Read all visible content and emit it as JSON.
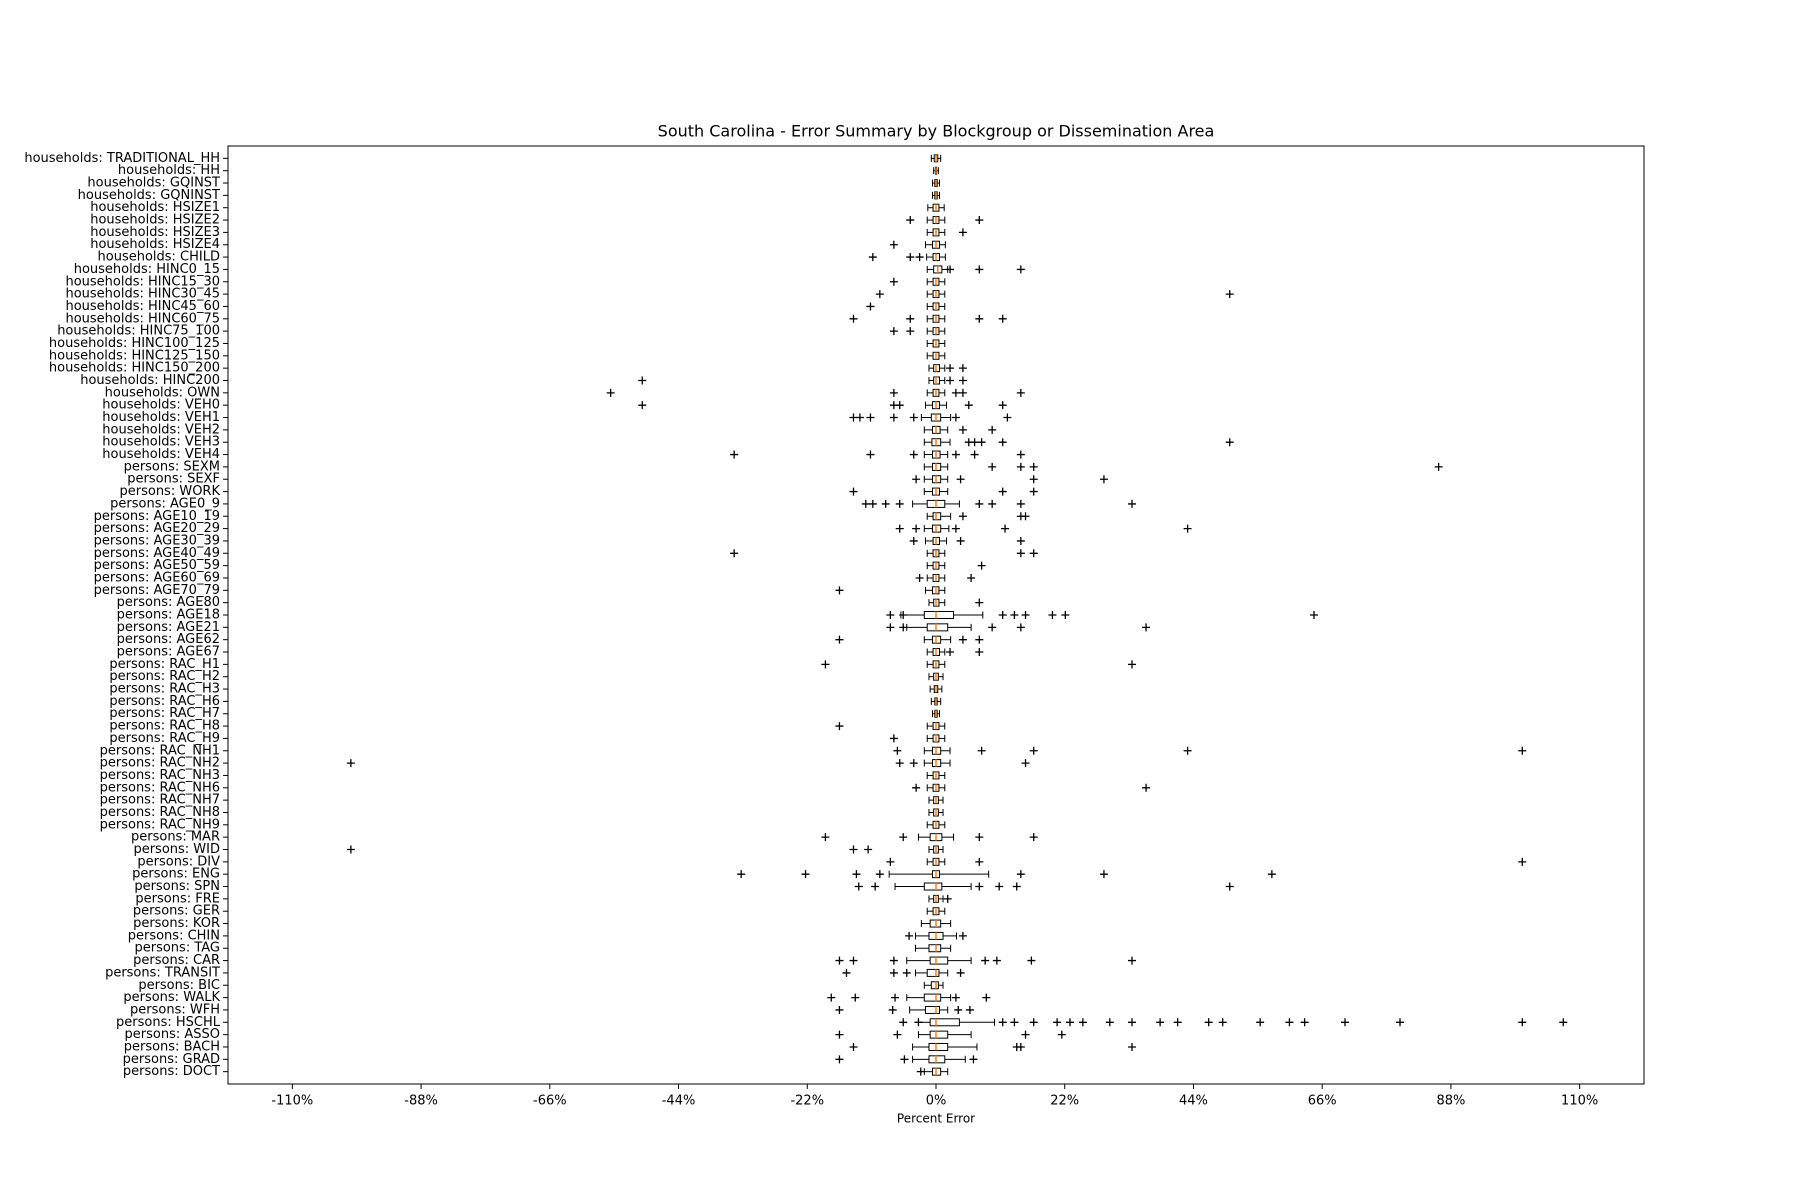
{
  "chart_data": {
    "type": "boxplot",
    "orientation": "horizontal",
    "title": "South Carolina - Error Summary by Blockgroup or Dissemination Area",
    "xlabel": "Percent Error",
    "xlim": [
      -121,
      121
    ],
    "xticks": [
      {
        "value": -110,
        "label": "-110%"
      },
      {
        "value": -88,
        "label": "-88%"
      },
      {
        "value": -66,
        "label": "-66%"
      },
      {
        "value": -44,
        "label": "-44%"
      },
      {
        "value": -22,
        "label": "-22%"
      },
      {
        "value": 0,
        "label": "0%"
      },
      {
        "value": 22,
        "label": "22%"
      },
      {
        "value": 44,
        "label": "44%"
      },
      {
        "value": 66,
        "label": "66%"
      },
      {
        "value": 88,
        "label": "88%"
      },
      {
        "value": 110,
        "label": "110%"
      }
    ],
    "categories": [
      "households: TRADITIONAL_HH",
      "households: HH",
      "households: GQINST",
      "households: GQNINST",
      "households: HSIZE1",
      "households: HSIZE2",
      "households: HSIZE3",
      "households: HSIZE4",
      "households: CHILD",
      "households: HINC0_15",
      "households: HINC15_30",
      "households: HINC30_45",
      "households: HINC45_60",
      "households: HINC60_75",
      "households: HINC75_100",
      "households: HINC100_125",
      "households: HINC125_150",
      "households: HINC150_200",
      "households: HINC200",
      "households: OWN",
      "households: VEH0",
      "households: VEH1",
      "households: VEH2",
      "households: VEH3",
      "households: VEH4",
      "persons: SEXM",
      "persons: SEXF",
      "persons: WORK",
      "persons: AGE0_9",
      "persons: AGE10_19",
      "persons: AGE20_29",
      "persons: AGE30_39",
      "persons: AGE40_49",
      "persons: AGE50_59",
      "persons: AGE60_69",
      "persons: AGE70_79",
      "persons: AGE80",
      "persons: AGE18",
      "persons: AGE21",
      "persons: AGE62",
      "persons: AGE67",
      "persons: RAC_H1",
      "persons: RAC_H2",
      "persons: RAC_H3",
      "persons: RAC_H6",
      "persons: RAC_H7",
      "persons: RAC_H8",
      "persons: RAC_H9",
      "persons: RAC_NH1",
      "persons: RAC_NH2",
      "persons: RAC_NH3",
      "persons: RAC_NH6",
      "persons: RAC_NH7",
      "persons: RAC_NH8",
      "persons: RAC_NH9",
      "persons: MAR",
      "persons: WID",
      "persons: DIV",
      "persons: ENG",
      "persons: SPN",
      "persons: FRE",
      "persons: GER",
      "persons: KOR",
      "persons: CHIN",
      "persons: TAG",
      "persons: CAR",
      "persons: TRANSIT",
      "persons: BIC",
      "persons: WALK",
      "persons: WFH",
      "persons: HSCHL",
      "persons: ASSO",
      "persons: BACH",
      "persons: GRAD",
      "persons: DOCT"
    ],
    "box_color": "#000000",
    "median_color": "#ff7f0e",
    "boxes": [
      {
        "whislo": -0.8,
        "q1": -0.3,
        "med": 0,
        "q3": 0.3,
        "whishi": 0.8,
        "fliers": []
      },
      {
        "whislo": -0.4,
        "q1": -0.1,
        "med": 0,
        "q3": 0.1,
        "whishi": 0.4,
        "fliers": []
      },
      {
        "whislo": -0.6,
        "q1": -0.2,
        "med": 0,
        "q3": 0.2,
        "whishi": 0.6,
        "fliers": []
      },
      {
        "whislo": -0.6,
        "q1": -0.2,
        "med": 0,
        "q3": 0.2,
        "whishi": 0.6,
        "fliers": []
      },
      {
        "whislo": -1.4,
        "q1": -0.5,
        "med": 0,
        "q3": 0.5,
        "whishi": 1.4,
        "fliers": []
      },
      {
        "whislo": -1.5,
        "q1": -0.5,
        "med": 0,
        "q3": 0.5,
        "whishi": 1.5,
        "fliers": [
          -4.4,
          7.4
        ]
      },
      {
        "whislo": -1.5,
        "q1": -0.5,
        "med": 0,
        "q3": 0.5,
        "whishi": 1.5,
        "fliers": [
          4.6
        ]
      },
      {
        "whislo": -1.8,
        "q1": -0.6,
        "med": 0,
        "q3": 0.6,
        "whishi": 1.6,
        "fliers": [
          -7.2
        ]
      },
      {
        "whislo": -1.6,
        "q1": -0.5,
        "med": 0,
        "q3": 0.6,
        "whishi": 1.6,
        "fliers": [
          -10.8,
          -4.4,
          -2.8
        ]
      },
      {
        "whislo": -1.5,
        "q1": -0.4,
        "med": 0.3,
        "q3": 1,
        "whishi": 2,
        "fliers": [
          2.4,
          7.4,
          14.5
        ]
      },
      {
        "whislo": -1.5,
        "q1": -0.5,
        "med": 0,
        "q3": 0.5,
        "whishi": 1.5,
        "fliers": [
          -7.2
        ]
      },
      {
        "whislo": -1.5,
        "q1": -0.5,
        "med": 0,
        "q3": 0.5,
        "whishi": 1.5,
        "fliers": [
          -9.6,
          50.2
        ]
      },
      {
        "whislo": -1.5,
        "q1": -0.5,
        "med": 0,
        "q3": 0.5,
        "whishi": 1.5,
        "fliers": [
          -11.2
        ]
      },
      {
        "whislo": -1.5,
        "q1": -0.5,
        "med": 0,
        "q3": 0.5,
        "whishi": 1.5,
        "fliers": [
          -14.1,
          -4.4,
          7.4,
          11.4
        ]
      },
      {
        "whislo": -1.5,
        "q1": -0.5,
        "med": 0,
        "q3": 0.5,
        "whishi": 1.5,
        "fliers": [
          -7.2,
          -4.4
        ]
      },
      {
        "whislo": -1.5,
        "q1": -0.5,
        "med": 0,
        "q3": 0.5,
        "whishi": 1.5,
        "fliers": []
      },
      {
        "whislo": -1.5,
        "q1": -0.5,
        "med": 0,
        "q3": 0.5,
        "whishi": 1.5,
        "fliers": []
      },
      {
        "whislo": -1.2,
        "q1": -0.4,
        "med": 0,
        "q3": 0.6,
        "whishi": 1.5,
        "fliers": [
          2.4,
          4.6
        ]
      },
      {
        "whislo": -1.2,
        "q1": -0.4,
        "med": 0,
        "q3": 0.6,
        "whishi": 1.5,
        "fliers": [
          -50.2,
          2.4,
          4.6
        ]
      },
      {
        "whislo": -1.5,
        "q1": -0.5,
        "med": 0,
        "q3": 0.5,
        "whishi": 1.5,
        "fliers": [
          -55.6,
          -7.2,
          3.4,
          4.6,
          14.5
        ]
      },
      {
        "whislo": -1.8,
        "q1": -0.6,
        "med": 0,
        "q3": 0.6,
        "whishi": 1.8,
        "fliers": [
          -50.2,
          -7.2,
          -6.2,
          5.6,
          11.4
        ]
      },
      {
        "whislo": -2.5,
        "q1": -0.8,
        "med": 0,
        "q3": 0.8,
        "whishi": 2.5,
        "fliers": [
          -14.1,
          -13,
          -11.2,
          -7.2,
          -3.8,
          3.4,
          12.2
        ]
      },
      {
        "whislo": -2,
        "q1": -0.6,
        "med": 0,
        "q3": 0.7,
        "whishi": 2,
        "fliers": [
          4.6,
          9.6
        ]
      },
      {
        "whislo": -2,
        "q1": -0.7,
        "med": 0,
        "q3": 0.8,
        "whishi": 2.4,
        "fliers": [
          5.6,
          6.6,
          7.8,
          11.4,
          50.2
        ]
      },
      {
        "whislo": -2,
        "q1": -0.6,
        "med": 0,
        "q3": 0.7,
        "whishi": 2,
        "fliers": [
          -34.5,
          -11.2,
          -3.8,
          3.4,
          6.6,
          14.5
        ]
      },
      {
        "whislo": -2,
        "q1": -0.6,
        "med": 0,
        "q3": 0.8,
        "whishi": 2,
        "fliers": [
          9.6,
          14.5,
          16.7,
          85.9
        ]
      },
      {
        "whislo": -2,
        "q1": -0.6,
        "med": 0,
        "q3": 0.8,
        "whishi": 2,
        "fliers": [
          -3.4,
          4.2,
          16.7,
          28.7
        ]
      },
      {
        "whislo": -2,
        "q1": -0.6,
        "med": 0,
        "q3": 0.6,
        "whishi": 2,
        "fliers": [
          -14.1,
          11.4,
          16.7
        ]
      },
      {
        "whislo": -4,
        "q1": -1.5,
        "med": 0,
        "q3": 1.5,
        "whishi": 4,
        "fliers": [
          -12,
          -10.8,
          -8.6,
          -6.2,
          7.4,
          9.6,
          14.5,
          33.5
        ]
      },
      {
        "whislo": -1.5,
        "q1": -0.5,
        "med": 0,
        "q3": 0.8,
        "whishi": 2.5,
        "fliers": [
          4.6,
          14.5,
          15.3
        ]
      },
      {
        "whislo": -2,
        "q1": -0.6,
        "med": 0,
        "q3": 0.8,
        "whishi": 2.2,
        "fliers": [
          -6.2,
          -3.4,
          3.4,
          11.8,
          43
        ]
      },
      {
        "whislo": -1.8,
        "q1": -0.5,
        "med": 0,
        "q3": 0.6,
        "whishi": 1.8,
        "fliers": [
          -3.8,
          4.2,
          14.5
        ]
      },
      {
        "whislo": -1.5,
        "q1": -0.5,
        "med": 0,
        "q3": 0.5,
        "whishi": 1.5,
        "fliers": [
          -34.5,
          14.5,
          16.7
        ]
      },
      {
        "whislo": -1.5,
        "q1": -0.5,
        "med": 0,
        "q3": 0.5,
        "whishi": 1.5,
        "fliers": [
          7.8
        ]
      },
      {
        "whislo": -1.5,
        "q1": -0.5,
        "med": 0,
        "q3": 0.5,
        "whishi": 1.5,
        "fliers": [
          -2.8,
          6
        ]
      },
      {
        "whislo": -1.8,
        "q1": -0.6,
        "med": 0,
        "q3": 0.5,
        "whishi": 1.5,
        "fliers": [
          -16.5
        ]
      },
      {
        "whislo": -1.2,
        "q1": -0.4,
        "med": 0,
        "q3": 0.5,
        "whishi": 1.5,
        "fliers": [
          7.4
        ]
      },
      {
        "whislo": -6,
        "q1": -2,
        "med": 0,
        "q3": 3,
        "whishi": 8,
        "fliers": [
          -7.8,
          -5.6,
          11.4,
          13.4,
          15.3,
          19.9,
          22.1,
          64.6
        ]
      },
      {
        "whislo": -5,
        "q1": -1.5,
        "med": 0,
        "q3": 2,
        "whishi": 6,
        "fliers": [
          -7.8,
          -5.6,
          9.6,
          14.5,
          35.9
        ]
      },
      {
        "whislo": -2,
        "q1": -0.6,
        "med": 0,
        "q3": 0.8,
        "whishi": 2.5,
        "fliers": [
          -16.5,
          4.6,
          7.4
        ]
      },
      {
        "whislo": -1.5,
        "q1": -0.5,
        "med": 0,
        "q3": 0.6,
        "whishi": 1.5,
        "fliers": [
          2.4,
          7.4
        ]
      },
      {
        "whislo": -1.5,
        "q1": -0.5,
        "med": 0,
        "q3": 0.5,
        "whishi": 1.5,
        "fliers": [
          -18.9,
          33.5
        ]
      },
      {
        "whislo": -1.2,
        "q1": -0.4,
        "med": 0,
        "q3": 0.4,
        "whishi": 1.2,
        "fliers": []
      },
      {
        "whislo": -1,
        "q1": -0.3,
        "med": 0,
        "q3": 0.3,
        "whishi": 1,
        "fliers": []
      },
      {
        "whislo": -0.8,
        "q1": -0.2,
        "med": 0,
        "q3": 0.2,
        "whishi": 0.8,
        "fliers": []
      },
      {
        "whislo": -0.6,
        "q1": -0.2,
        "med": 0,
        "q3": 0.2,
        "whishi": 0.6,
        "fliers": []
      },
      {
        "whislo": -1.5,
        "q1": -0.5,
        "med": 0,
        "q3": 0.5,
        "whishi": 1.5,
        "fliers": [
          -16.5
        ]
      },
      {
        "whislo": -1.5,
        "q1": -0.5,
        "med": 0,
        "q3": 0.5,
        "whishi": 1.5,
        "fliers": [
          -7.2
        ]
      },
      {
        "whislo": -2,
        "q1": -0.6,
        "med": 0,
        "q3": 0.8,
        "whishi": 2.4,
        "fliers": [
          -6.6,
          7.8,
          16.7,
          43,
          100.2
        ]
      },
      {
        "whislo": -2,
        "q1": -0.6,
        "med": 0,
        "q3": 0.8,
        "whishi": 2.4,
        "fliers": [
          -100,
          -6.2,
          -3.8,
          15.3
        ]
      },
      {
        "whislo": -1.5,
        "q1": -0.5,
        "med": 0,
        "q3": 0.5,
        "whishi": 1.5,
        "fliers": []
      },
      {
        "whislo": -1.5,
        "q1": -0.5,
        "med": 0,
        "q3": 0.5,
        "whishi": 1.5,
        "fliers": [
          -3.4,
          35.9
        ]
      },
      {
        "whislo": -1.2,
        "q1": -0.4,
        "med": 0,
        "q3": 0.4,
        "whishi": 1.2,
        "fliers": []
      },
      {
        "whislo": -1.2,
        "q1": -0.4,
        "med": 0,
        "q3": 0.4,
        "whishi": 1.2,
        "fliers": []
      },
      {
        "whislo": -1.5,
        "q1": -0.5,
        "med": 0,
        "q3": 0.5,
        "whishi": 1.5,
        "fliers": []
      },
      {
        "whislo": -3,
        "q1": -1,
        "med": 0,
        "q3": 1,
        "whishi": 3,
        "fliers": [
          -18.9,
          -5.6,
          7.4,
          16.7
        ]
      },
      {
        "whislo": -1.2,
        "q1": -0.4,
        "med": 0,
        "q3": 0.4,
        "whishi": 1.2,
        "fliers": [
          -100,
          -14.1,
          -11.6
        ]
      },
      {
        "whislo": -1.5,
        "q1": -0.5,
        "med": 0,
        "q3": 0.5,
        "whishi": 1.5,
        "fliers": [
          -7.8,
          7.4,
          100.2
        ]
      },
      {
        "whislo": -8,
        "q1": -0.6,
        "med": 0,
        "q3": 0.6,
        "whishi": 9,
        "fliers": [
          -33.3,
          -22.3,
          -13.6,
          -9.6,
          14.5,
          28.7,
          57.4
        ]
      },
      {
        "whislo": -7,
        "q1": -2,
        "med": 0,
        "q3": 1,
        "whishi": 6,
        "fliers": [
          -13.2,
          -10.4,
          7.4,
          10.8,
          13.8,
          50.2
        ]
      },
      {
        "whislo": -1.2,
        "q1": -0.4,
        "med": 0,
        "q3": 0.4,
        "whishi": 1.2,
        "fliers": [
          2
        ]
      },
      {
        "whislo": -1.5,
        "q1": -0.5,
        "med": 0,
        "q3": 0.5,
        "whishi": 1.5,
        "fliers": []
      },
      {
        "whislo": -2.5,
        "q1": -1,
        "med": 0,
        "q3": 0.8,
        "whishi": 2.5,
        "fliers": []
      },
      {
        "whislo": -3.5,
        "q1": -1.2,
        "med": 0,
        "q3": 1.2,
        "whishi": 3.5,
        "fliers": [
          -4.6,
          4.6
        ]
      },
      {
        "whislo": -3.5,
        "q1": -1.2,
        "med": 0,
        "q3": 0.8,
        "whishi": 2.5,
        "fliers": []
      },
      {
        "whislo": -5,
        "q1": -1,
        "med": 0,
        "q3": 2,
        "whishi": 6,
        "fliers": [
          -16.5,
          -14.1,
          -7.2,
          8.4,
          10.4,
          16.3,
          33.5
        ]
      },
      {
        "whislo": -3.5,
        "q1": -1.5,
        "med": 0,
        "q3": 0.5,
        "whishi": 2,
        "fliers": [
          -15.3,
          -7.2,
          -5,
          4.2
        ]
      },
      {
        "whislo": -2,
        "q1": -0.8,
        "med": 0,
        "q3": 0.4,
        "whishi": 1.2,
        "fliers": []
      },
      {
        "whislo": -5,
        "q1": -2,
        "med": 0,
        "q3": 0.8,
        "whishi": 2.5,
        "fliers": [
          -17.9,
          -13.8,
          -7,
          3.4,
          8.6
        ]
      },
      {
        "whislo": -4.5,
        "q1": -1.8,
        "med": 0,
        "q3": 0.6,
        "whishi": 2,
        "fliers": [
          -16.5,
          -7.4,
          3.8,
          5.8
        ]
      },
      {
        "whislo": -3,
        "q1": -1,
        "med": 0,
        "q3": 4,
        "whishi": 10,
        "fliers": [
          -5.6,
          -3,
          11.4,
          13.4,
          16.7,
          20.7,
          22.9,
          25.1,
          29.7,
          33.5,
          38.3,
          41.3,
          46.6,
          49,
          55.4,
          60.4,
          63,
          69.9,
          79.3,
          100.2,
          107.2
        ]
      },
      {
        "whislo": -3,
        "q1": -1,
        "med": 0,
        "q3": 2,
        "whishi": 6,
        "fliers": [
          -16.5,
          -6.6,
          15.3,
          21.5
        ]
      },
      {
        "whislo": -4,
        "q1": -1.2,
        "med": 0,
        "q3": 2,
        "whishi": 7,
        "fliers": [
          -14.1,
          13.8,
          14.5,
          33.5
        ]
      },
      {
        "whislo": -4,
        "q1": -1.2,
        "med": 0,
        "q3": 1.5,
        "whishi": 5,
        "fliers": [
          -16.5,
          -5.4,
          6.4
        ]
      },
      {
        "whislo": -2,
        "q1": -0.6,
        "med": 0,
        "q3": 0.8,
        "whishi": 2,
        "fliers": [
          -2.6
        ]
      }
    ]
  }
}
